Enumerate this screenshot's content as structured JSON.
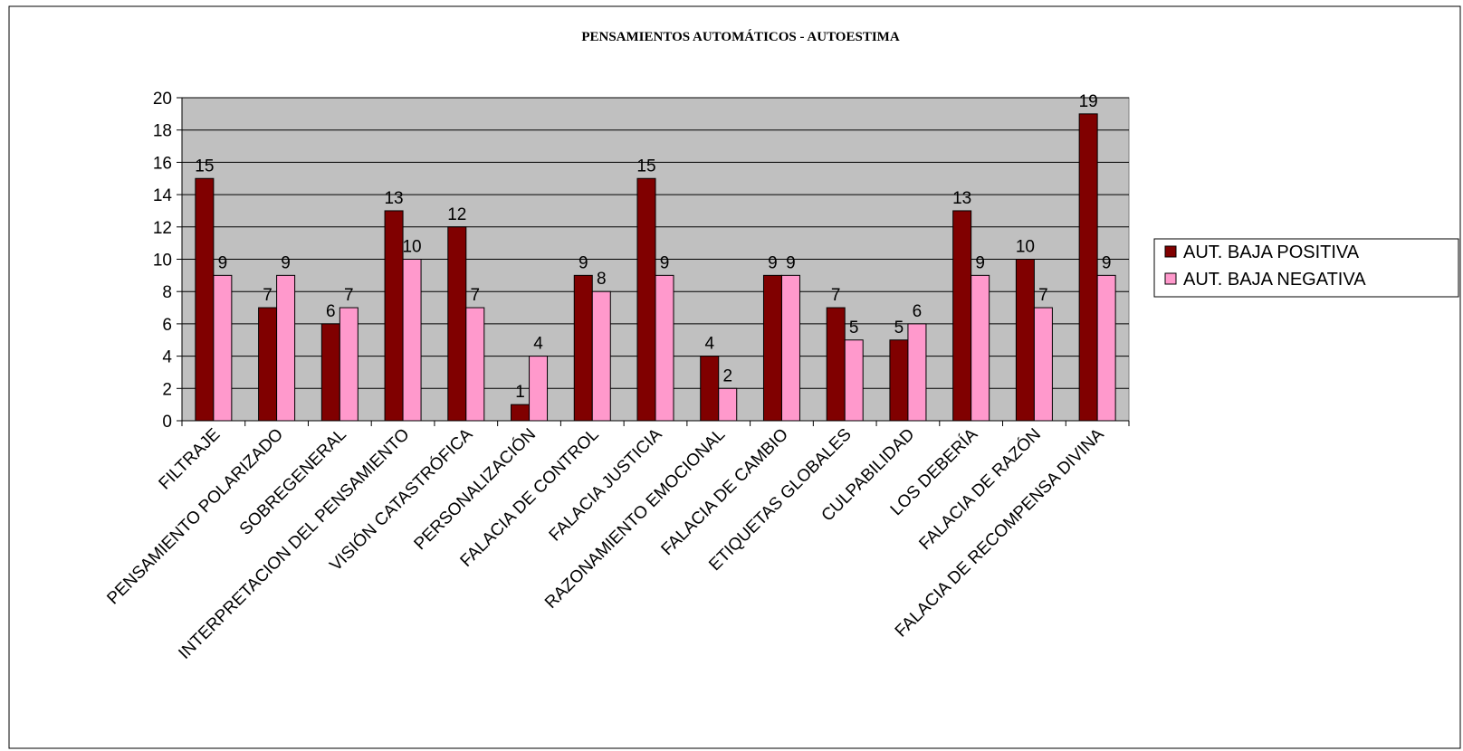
{
  "chart_data": {
    "type": "bar",
    "title": "PENSAMIENTOS AUTOMÁTICOS - AUTOESTIMA",
    "xlabel": "",
    "ylabel": "",
    "ylim": [
      0,
      20
    ],
    "yticks": [
      0,
      2,
      4,
      6,
      8,
      10,
      12,
      14,
      16,
      18,
      20
    ],
    "grid": true,
    "legend_position": "right",
    "categories": [
      "FILTRAJE",
      "PENSAMIENTO POLARIZADO",
      "SOBREGENERAL",
      "INTERPRETACION DEL PENSAMIENTO",
      "VISIÓN CATASTRÓFICA",
      "PERSONALIZACIÓN",
      "FALACIA DE CONTROL",
      "FALACIA JUSTICIA",
      "RAZONAMIENTO EMOCIONAL",
      "FALACIA DE CAMBIO",
      "ETIQUETAS GLOBALES",
      "CULPABILIDAD",
      "LOS DEBERÍA",
      "FALACIA DE RAZÓN",
      "FALACIA DE RECOMPENSA DIVINA"
    ],
    "series": [
      {
        "name": "AUT. BAJA POSITIVA",
        "color": "#800000",
        "values": [
          15,
          7,
          6,
          13,
          12,
          1,
          9,
          15,
          4,
          9,
          7,
          5,
          13,
          10,
          19
        ]
      },
      {
        "name": "AUT. BAJA NEGATIVA",
        "color": "#FF99CC",
        "values": [
          9,
          9,
          7,
          10,
          7,
          4,
          8,
          9,
          2,
          9,
          5,
          6,
          9,
          7,
          9
        ]
      }
    ],
    "plot_background": "#C0C0C0"
  }
}
